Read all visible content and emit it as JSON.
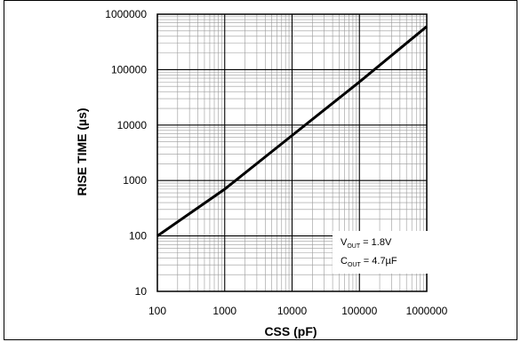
{
  "chart_data": {
    "type": "line",
    "title": "",
    "xlabel": "CSS (pF)",
    "ylabel": "RISE TIME (µs)",
    "x_scale": "log",
    "y_scale": "log",
    "xlim": [
      100,
      1000000
    ],
    "ylim": [
      10,
      1000000
    ],
    "x_ticks": [
      "100",
      "1000",
      "10000",
      "100000",
      "1000000"
    ],
    "y_ticks": [
      "10",
      "100",
      "1000",
      "10000",
      "100000",
      "1000000"
    ],
    "grid": true,
    "series": [
      {
        "x": [
          100,
          1000,
          10000,
          100000,
          1000000
        ],
        "y": [
          100,
          700,
          6500,
          60000,
          600000
        ]
      }
    ],
    "annotations": [
      {
        "main": "V",
        "sub": "OUT",
        "rest": " = 1.8V"
      },
      {
        "main": "C",
        "sub": "OUT",
        "rest": " = 4.7µF"
      }
    ],
    "colors": {
      "line": "#000000",
      "grid_major": "#000000",
      "grid_minor": "#9a9a9a"
    }
  }
}
